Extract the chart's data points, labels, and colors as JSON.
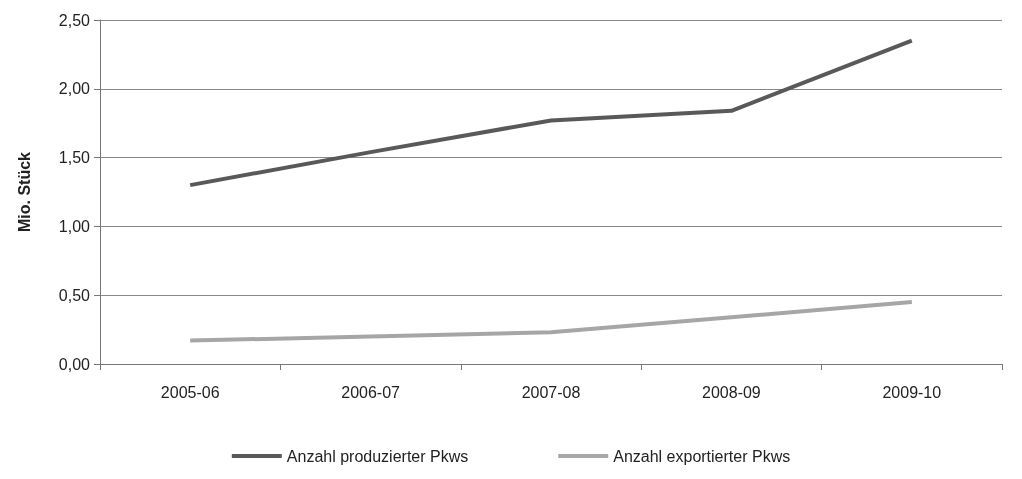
{
  "chart_data": {
    "type": "line",
    "ylabel": "Mio. Stück",
    "categories": [
      "2005-06",
      "2006-07",
      "2007-08",
      "2008-09",
      "2009-10"
    ],
    "series": [
      {
        "name": "Anzahl produzierter Pkws",
        "color": "#595959",
        "values": [
          1.3,
          1.54,
          1.77,
          1.84,
          2.35
        ]
      },
      {
        "name": "Anzahl exportierter Pkws",
        "color": "#a6a6a6",
        "values": [
          0.17,
          0.2,
          0.23,
          0.34,
          0.45
        ]
      }
    ],
    "ylim": [
      0,
      2.5
    ],
    "yticks": [
      {
        "value": 0,
        "label": "0,00"
      },
      {
        "value": 0.5,
        "label": "0,50"
      },
      {
        "value": 1,
        "label": "1,00"
      },
      {
        "value": 1.5,
        "label": "1,50"
      },
      {
        "value": 2,
        "label": "2,00"
      },
      {
        "value": 2.5,
        "label": "2,50"
      }
    ],
    "grid": "y",
    "legend": "bottom",
    "marker": "none",
    "line_style": "solid"
  }
}
